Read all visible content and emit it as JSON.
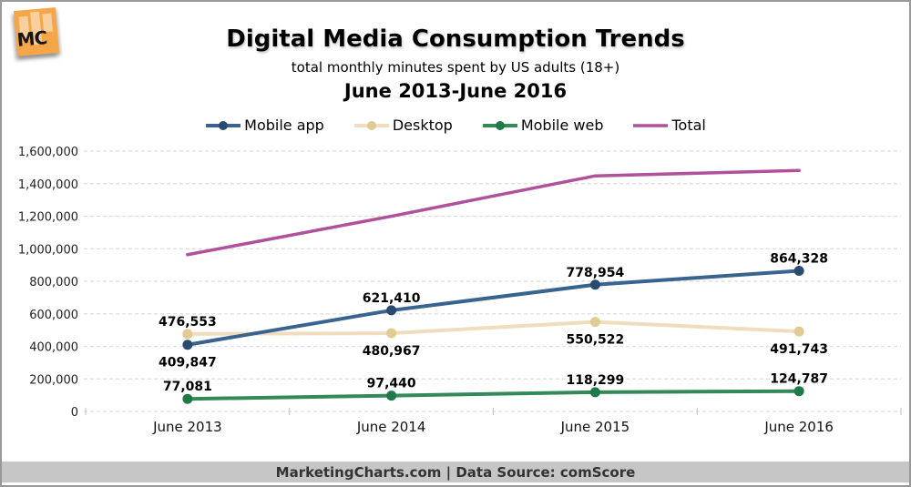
{
  "branding": {
    "logo_text": "MC"
  },
  "chart_data": {
    "type": "line",
    "title": "Digital Media Consumption Trends",
    "subtitle": "total monthly minutes spent by US adults (18+)",
    "date_range": "June 2013-June 2016",
    "categories": [
      "June 2013",
      "June 2014",
      "June 2015",
      "June 2016"
    ],
    "series": [
      {
        "name": "Mobile app",
        "color": "#39648F",
        "marker_color": "#2A4B70",
        "markers": true,
        "line_width": 4,
        "values": [
          409847,
          621410,
          778954,
          864328
        ],
        "labels": [
          "409,847",
          "621,410",
          "778,954",
          "864,328"
        ],
        "label_positions": [
          "below",
          "above",
          "above",
          "above"
        ]
      },
      {
        "name": "Desktop",
        "color": "#F0DDBE",
        "marker_color": "#E2CB92",
        "markers": true,
        "line_width": 4,
        "values": [
          476553,
          480967,
          550522,
          491743
        ],
        "labels": [
          "476,553",
          "480,967",
          "550,522",
          "491,743"
        ],
        "label_positions": [
          "above",
          "below",
          "below",
          "below"
        ]
      },
      {
        "name": "Mobile web",
        "color": "#338A58",
        "marker_color": "#1F7848",
        "markers": true,
        "line_width": 4,
        "values": [
          77081,
          97440,
          118299,
          124787
        ],
        "labels": [
          "77,081",
          "97,440",
          "118,299",
          "124,787"
        ],
        "label_positions": [
          "above",
          "above",
          "above",
          "above"
        ]
      },
      {
        "name": "Total",
        "color": "#B0519B",
        "marker_color": "#B0519B",
        "markers": false,
        "line_width": 3.5,
        "values": [
          963481,
          1199817,
          1447775,
          1480858
        ],
        "labels": [],
        "label_positions": []
      }
    ],
    "y_axis": {
      "min": 0,
      "max": 1600000,
      "tick_interval": 200000,
      "tick_labels": [
        "0",
        "200,000",
        "400,000",
        "600,000",
        "800,000",
        "1,000,000",
        "1,200,000",
        "1,400,000",
        "1,600,000"
      ]
    },
    "grid": "dashed-horizontal",
    "legend_position": "top"
  },
  "footer": {
    "text": "MarketingCharts.com | Data Source: comScore"
  }
}
